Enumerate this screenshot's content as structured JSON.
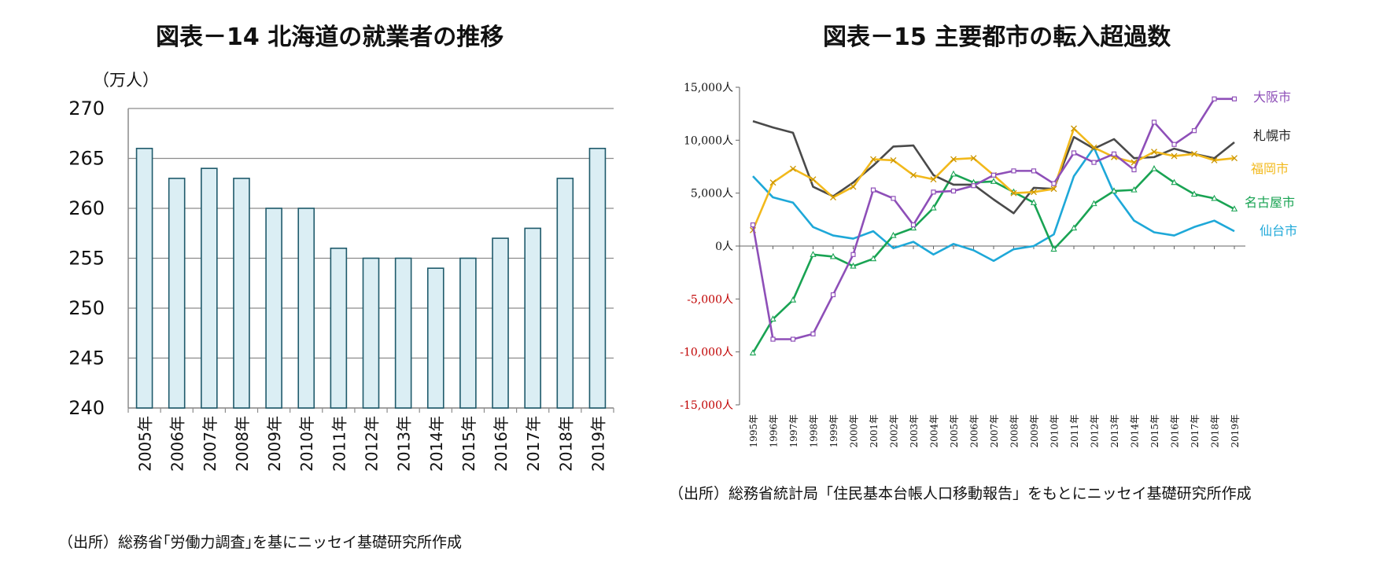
{
  "charts": {
    "left": {
      "title": "図表－14  北海道の就業者の推移",
      "unit": "（万人）",
      "source": "（出所）総務省｢労働力調査｣を基にニッセイ基礎研究所作成"
    },
    "right": {
      "title": "図表－15  主要都市の転入超過数",
      "source": "（出所）総務省統計局「住民基本台帳人口移動報告」をもとにニッセイ基礎研究所作成"
    }
  },
  "colors": {
    "bar_fill": "#dbeef4",
    "bar_stroke": "#1f5a6b",
    "grid": "#8c8c8c",
    "negative_tick": "#c00000"
  },
  "chart_data": [
    {
      "type": "bar",
      "title": "図表－14  北海道の就業者の推移",
      "ylabel": "（万人）",
      "categories": [
        "2005年",
        "2006年",
        "2007年",
        "2008年",
        "2009年",
        "2010年",
        "2011年",
        "2012年",
        "2013年",
        "2014年",
        "2015年",
        "2016年",
        "2017年",
        "2018年",
        "2019年"
      ],
      "values": [
        266,
        263,
        264,
        263,
        260,
        260,
        256,
        255,
        255,
        254,
        255,
        257,
        258,
        263,
        266
      ],
      "ylim": [
        240,
        270
      ],
      "yticks": [
        "240",
        "245",
        "250",
        "255",
        "260",
        "265",
        "270"
      ],
      "grid": true
    },
    {
      "type": "line",
      "title": "図表－15  主要都市の転入超過数",
      "x": [
        "1995年",
        "1996年",
        "1997年",
        "1998年",
        "1999年",
        "2000年",
        "2001年",
        "2002年",
        "2003年",
        "2004年",
        "2005年",
        "2006年",
        "2007年",
        "2008年",
        "2009年",
        "2010年",
        "2011年",
        "2012年",
        "2013年",
        "2014年",
        "2015年",
        "2016年",
        "2017年",
        "2018年",
        "2019年"
      ],
      "ylim": [
        -15000,
        15000
      ],
      "yticks": [
        "-15,000人",
        "-10,000人",
        "-5,000人",
        "0人",
        "5,000人",
        "10,000人",
        "15,000人"
      ],
      "grid": false,
      "series": [
        {
          "name": "大阪市",
          "color": "#8e4fb8",
          "marker": "square",
          "values": [
            2000,
            -8800,
            -8800,
            -8300,
            -4600,
            -800,
            5300,
            4500,
            2000,
            5100,
            5200,
            5700,
            6700,
            7100,
            7100,
            5900,
            8800,
            7900,
            8700,
            7200,
            11700,
            9600,
            10900,
            13900,
            13900
          ]
        },
        {
          "name": "札幌市",
          "color": "#4a4a4a",
          "marker": "none",
          "values": [
            11800,
            11200,
            10700,
            5600,
            4700,
            6000,
            7600,
            9400,
            9500,
            6700,
            5800,
            5800,
            4400,
            3100,
            5500,
            5400,
            10300,
            9200,
            10100,
            8300,
            8400,
            9200,
            8700,
            8300,
            9800
          ]
        },
        {
          "name": "福岡市",
          "color": "#f2b91c",
          "marker": "x",
          "values": [
            1500,
            6000,
            7300,
            6300,
            4600,
            5600,
            8200,
            8100,
            6700,
            6300,
            8200,
            8300,
            6700,
            5000,
            5100,
            5400,
            11100,
            9300,
            8400,
            7900,
            8900,
            8500,
            8700,
            8100,
            8300
          ]
        },
        {
          "name": "名古屋市",
          "color": "#19a353",
          "marker": "triangle",
          "values": [
            -10100,
            -6900,
            -5100,
            -800,
            -1000,
            -1900,
            -1200,
            1000,
            1700,
            3600,
            6800,
            6000,
            6100,
            5100,
            4100,
            -300,
            1700,
            4000,
            5200,
            5300,
            7300,
            6000,
            4900,
            4500,
            3500
          ]
        },
        {
          "name": "仙台市",
          "color": "#1ea8d8",
          "marker": "none",
          "values": [
            6600,
            4600,
            4100,
            1800,
            1000,
            700,
            1400,
            -200,
            400,
            -800,
            200,
            -400,
            -1400,
            -300,
            0,
            1100,
            6600,
            9300,
            5000,
            2400,
            1300,
            1000,
            1800,
            2400,
            1400
          ]
        }
      ]
    }
  ]
}
